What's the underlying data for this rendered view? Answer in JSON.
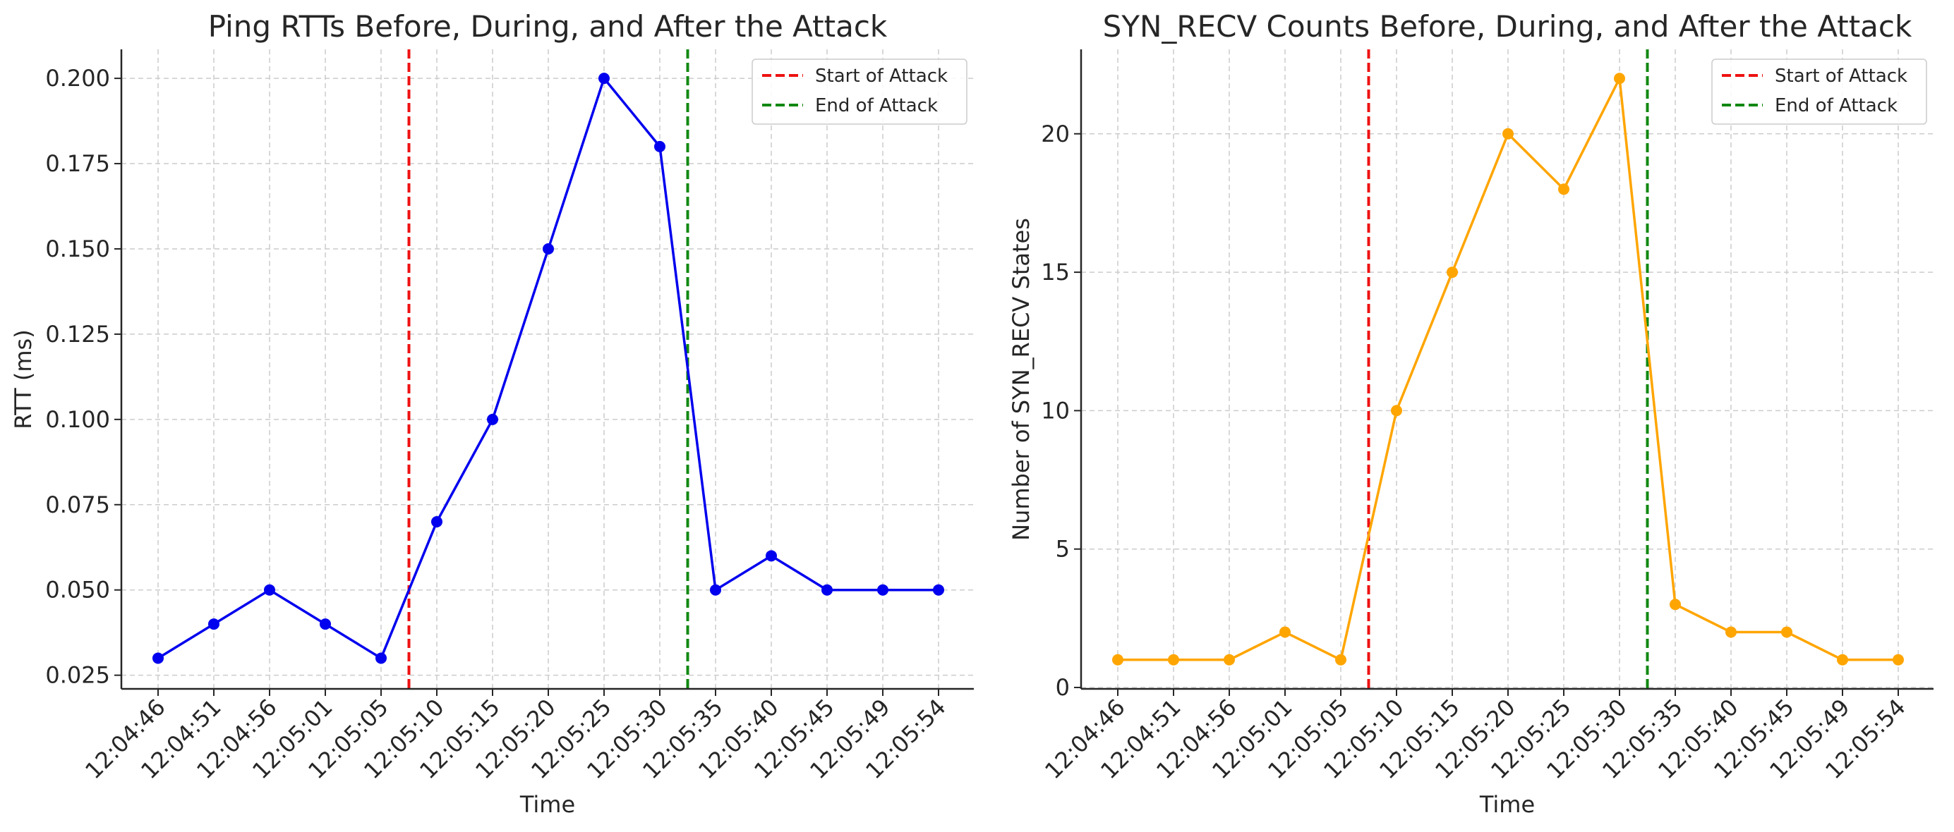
{
  "figure": {
    "background": "#ffffff"
  },
  "chart_data": [
    {
      "type": "line",
      "title": "Ping RTTs Before, During, and After the Attack",
      "xlabel": "Time",
      "ylabel": "RTT (ms)",
      "categories": [
        "12:04:46",
        "12:04:51",
        "12:04:56",
        "12:05:01",
        "12:05:05",
        "12:05:10",
        "12:05:15",
        "12:05:20",
        "12:05:25",
        "12:05:30",
        "12:05:35",
        "12:05:40",
        "12:05:45",
        "12:05:49",
        "12:05:54"
      ],
      "series": [
        {
          "values": [
            0.03,
            0.04,
            0.05,
            0.04,
            0.03,
            0.07,
            0.1,
            0.15,
            0.2,
            0.18,
            0.05,
            0.06,
            0.05,
            0.05,
            0.05
          ],
          "color": "#0000ee",
          "marker": "circle"
        }
      ],
      "ylim": [
        0.021,
        0.2085
      ],
      "yticks": [
        0.025,
        0.05,
        0.075,
        0.1,
        0.125,
        0.15,
        0.175,
        0.2
      ],
      "ytick_labels": [
        "0.025",
        "0.050",
        "0.075",
        "0.100",
        "0.125",
        "0.150",
        "0.175",
        "0.200"
      ],
      "vlines": [
        {
          "x": 4.5,
          "label": "Start of Attack",
          "color": "#ee1111",
          "style": "dashed"
        },
        {
          "x": 9.5,
          "label": "End of Attack",
          "color": "#118811",
          "style": "dashed"
        }
      ],
      "grid": true,
      "legend_position": "top-right"
    },
    {
      "type": "line",
      "title": "SYN_RECV Counts Before, During, and After the Attack",
      "xlabel": "Time",
      "ylabel": "Number of SYN_RECV States",
      "categories": [
        "12:04:46",
        "12:04:51",
        "12:04:56",
        "12:05:01",
        "12:05:05",
        "12:05:10",
        "12:05:15",
        "12:05:20",
        "12:05:25",
        "12:05:30",
        "12:05:35",
        "12:05:40",
        "12:05:45",
        "12:05:49",
        "12:05:54"
      ],
      "series": [
        {
          "values": [
            1,
            1,
            1,
            2,
            1,
            10,
            15,
            20,
            18,
            22,
            3,
            2,
            2,
            1,
            1
          ],
          "color": "#ffa500",
          "marker": "circle"
        }
      ],
      "ylim": [
        -0.05,
        23.05
      ],
      "yticks": [
        0,
        5,
        10,
        15,
        20
      ],
      "ytick_labels": [
        "0",
        "5",
        "10",
        "15",
        "20"
      ],
      "vlines": [
        {
          "x": 4.5,
          "label": "Start of Attack",
          "color": "#ee1111",
          "style": "dashed"
        },
        {
          "x": 9.5,
          "label": "End of Attack",
          "color": "#118811",
          "style": "dashed"
        }
      ],
      "grid": true,
      "legend_position": "top-right"
    }
  ]
}
